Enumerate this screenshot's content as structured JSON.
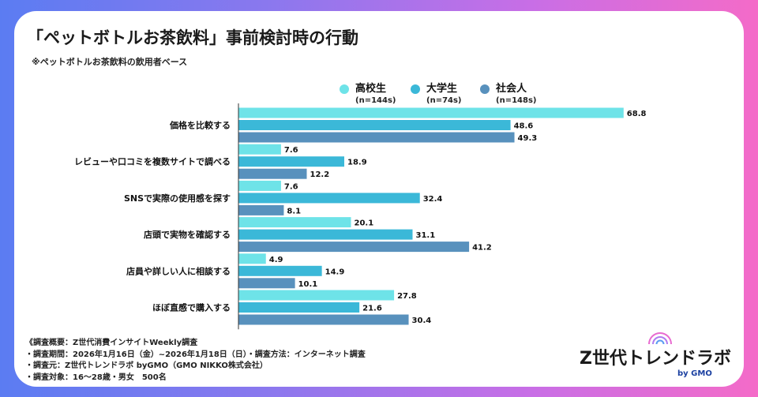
{
  "header": {
    "title": "「ペットボトルお茶飲料」事前検討時の行動",
    "subtitle": "※ペットボトルお茶飲料の飲用者ベース"
  },
  "legend": [
    {
      "name": "高校生",
      "n": "(n=144s)",
      "color": "#6ee3e8"
    },
    {
      "name": "大学生",
      "n": "(n=74s)",
      "color": "#3bb8d8"
    },
    {
      "name": "社会人",
      "n": "(n=148s)",
      "color": "#5891bd"
    }
  ],
  "chart_data": {
    "type": "bar",
    "orientation": "horizontal",
    "title": "「ペットボトルお茶飲料」事前検討時の行動",
    "categories": [
      "価格を比較する",
      "レビューや口コミを複数サイトで調べる",
      "SNSで実際の使用感を探す",
      "店頭で実物を確認する",
      "店員や詳しい人に相談する",
      "ほぼ直感で購入する"
    ],
    "series": [
      {
        "name": "高校生",
        "values": [
          68.8,
          7.6,
          7.6,
          20.1,
          4.9,
          27.8
        ]
      },
      {
        "name": "大学生",
        "values": [
          48.6,
          18.9,
          32.4,
          31.1,
          14.9,
          21.6
        ]
      },
      {
        "name": "社会人",
        "values": [
          49.3,
          12.2,
          8.1,
          41.2,
          10.1,
          30.4
        ]
      }
    ],
    "xlim": [
      0,
      70
    ],
    "xticks": [
      "0",
      "10",
      "20",
      "30",
      "40",
      "50",
      "60",
      "70"
    ],
    "grid": false,
    "legend_position": "top-right"
  },
  "footer": {
    "notes": [
      "《調査概要：Z世代消費インサイトWeekly調査",
      "・調査期間：2026年1月16日（金）~2026年1月18日（日）・調査方法：インターネット調査",
      "・調査元：Z世代トレンドラボ byGMO（GMO NIKKO株式会社）",
      "・調査対象：16〜28歳・男女　500名"
    ],
    "logo_text": "Z世代トレンドラボ",
    "logo_by": "by GMO"
  }
}
